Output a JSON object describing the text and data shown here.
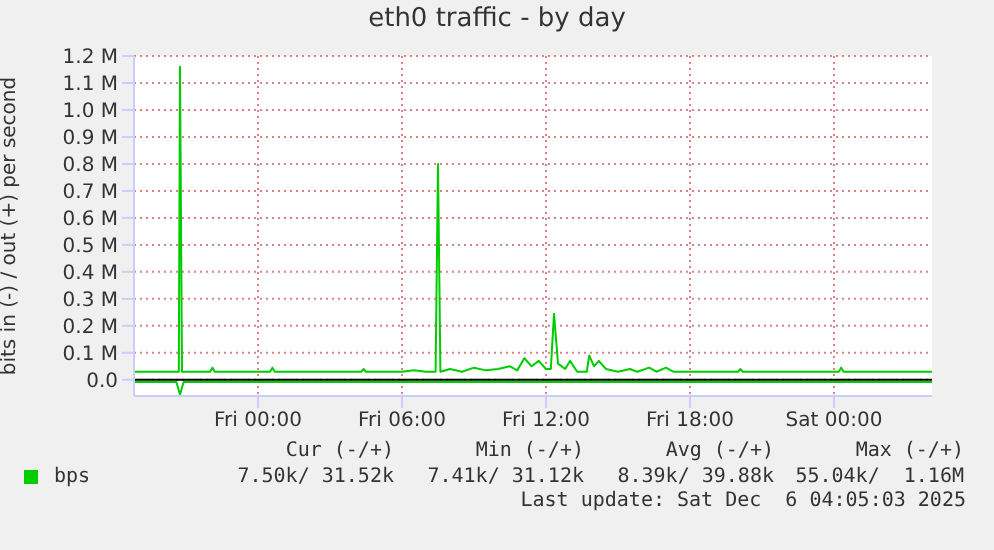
{
  "chart_data": {
    "type": "line",
    "title": "eth0 traffic - by day",
    "ylabel": "bits in (-) / out (+) per second",
    "xlim": [
      "2025-12-04T18:50",
      "2025-12-06T04:05"
    ],
    "xticks": [
      {
        "value": "2025-12-05T00:00",
        "label": "Fri 00:00"
      },
      {
        "value": "2025-12-05T06:00",
        "label": "Fri 06:00"
      },
      {
        "value": "2025-12-05T12:00",
        "label": "Fri 12:00"
      },
      {
        "value": "2025-12-05T18:00",
        "label": "Fri 18:00"
      },
      {
        "value": "2025-12-06T00:00",
        "label": "Sat 00:00"
      }
    ],
    "ylim": [
      -0.06,
      1.2
    ],
    "yticks": [
      {
        "value": 0,
        "label": "0.0"
      },
      {
        "value": 0.1,
        "label": "0.1 M"
      },
      {
        "value": 0.2,
        "label": "0.2 M"
      },
      {
        "value": 0.3,
        "label": "0.3 M"
      },
      {
        "value": 0.4,
        "label": "0.4 M"
      },
      {
        "value": 0.5,
        "label": "0.5 M"
      },
      {
        "value": 0.6,
        "label": "0.6 M"
      },
      {
        "value": 0.7,
        "label": "0.7 M"
      },
      {
        "value": 0.8,
        "label": "0.8 M"
      },
      {
        "value": 0.9,
        "label": "0.9 M"
      },
      {
        "value": 1.0,
        "label": "1.0 M"
      },
      {
        "value": 1.1,
        "label": "1.1 M"
      },
      {
        "value": 1.2,
        "label": "1.2 M"
      }
    ],
    "grid": true,
    "legend": "bottom left",
    "marker": "none",
    "line_style": "solid",
    "ref_lines": [
      {
        "axis": "y",
        "value": 0,
        "color": "#000000"
      }
    ],
    "series": [
      {
        "name": "bps",
        "color": "#00cc00",
        "x": [
          "2025-12-04T18:50",
          "2025-12-04T20:30",
          "2025-12-04T20:42",
          "2025-12-04T20:45",
          "2025-12-04T20:50",
          "2025-12-04T22:00",
          "2025-12-04T22:06",
          "2025-12-04T22:12",
          "2025-12-05T00:30",
          "2025-12-05T00:36",
          "2025-12-05T00:42",
          "2025-12-05T04:18",
          "2025-12-05T04:24",
          "2025-12-05T04:30",
          "2025-12-05T06:00",
          "2025-12-05T06:30",
          "2025-12-05T07:00",
          "2025-12-05T07:24",
          "2025-12-05T07:30",
          "2025-12-05T07:36",
          "2025-12-05T08:00",
          "2025-12-05T08:30",
          "2025-12-05T09:00",
          "2025-12-05T09:30",
          "2025-12-05T10:00",
          "2025-12-05T10:30",
          "2025-12-05T10:48",
          "2025-12-05T11:06",
          "2025-12-05T11:24",
          "2025-12-05T11:42",
          "2025-12-05T12:00",
          "2025-12-05T12:12",
          "2025-12-05T12:20",
          "2025-12-05T12:30",
          "2025-12-05T12:48",
          "2025-12-05T13:00",
          "2025-12-05T13:18",
          "2025-12-05T13:42",
          "2025-12-05T13:48",
          "2025-12-05T14:00",
          "2025-12-05T14:12",
          "2025-12-05T14:30",
          "2025-12-05T15:00",
          "2025-12-05T15:30",
          "2025-12-05T15:48",
          "2025-12-05T16:18",
          "2025-12-05T16:36",
          "2025-12-05T17:00",
          "2025-12-05T17:18",
          "2025-12-05T20:00",
          "2025-12-05T20:06",
          "2025-12-05T20:12",
          "2025-12-06T00:12",
          "2025-12-06T00:18",
          "2025-12-06T00:24",
          "2025-12-06T04:05"
        ],
        "values": [
          0.03,
          0.03,
          0.03,
          1.16,
          0.03,
          0.03,
          0.045,
          0.03,
          0.03,
          0.045,
          0.03,
          0.03,
          0.04,
          0.03,
          0.03,
          0.035,
          0.03,
          0.03,
          0.8,
          0.03,
          0.04,
          0.03,
          0.045,
          0.035,
          0.04,
          0.05,
          0.035,
          0.08,
          0.05,
          0.07,
          0.04,
          0.04,
          0.245,
          0.06,
          0.04,
          0.07,
          0.03,
          0.03,
          0.09,
          0.05,
          0.07,
          0.04,
          0.03,
          0.04,
          0.03,
          0.045,
          0.03,
          0.045,
          0.03,
          0.03,
          0.04,
          0.03,
          0.03,
          0.045,
          0.03,
          0.03
        ]
      },
      {
        "color": "#00cc00",
        "x": [
          "2025-12-04T18:50",
          "2025-12-04T20:36",
          "2025-12-04T20:45",
          "2025-12-04T20:54",
          "2025-12-06T04:05"
        ],
        "values": [
          -0.008,
          -0.008,
          -0.055,
          -0.008,
          -0.008
        ]
      }
    ],
    "annotations": [
      "Cur (-/+)",
      "Min (-/+)",
      "Avg (-/+)",
      "Max (-/+)",
      "7.50k/ 31.52k",
      "7.41k/ 31.12k",
      "8.39k/ 39.88k",
      "55.04k/  1.16M",
      "Last update: Sat Dec  6 04:05:03 2025"
    ]
  }
}
